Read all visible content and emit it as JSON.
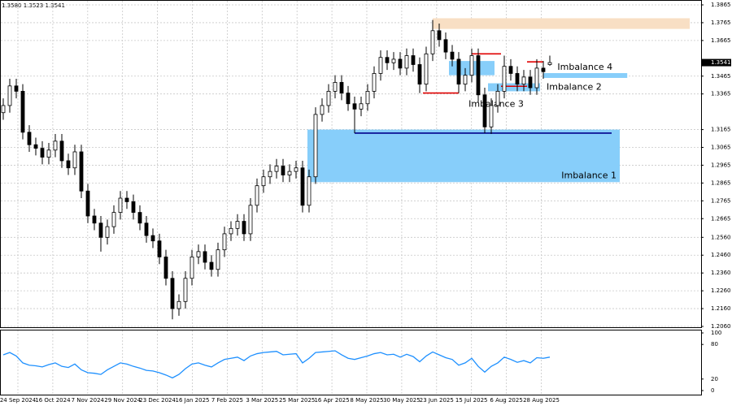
{
  "chart_data": {
    "type": "candlestick",
    "last_bar": {
      "values": [
        1.358,
        1.3523,
        1.3541
      ],
      "value_labels": [
        "1.3580",
        "1.3523",
        "1.3541"
      ]
    },
    "open": [
      1.326,
      1.33,
      1.341,
      1.338,
      1.315,
      1.308,
      1.306,
      1.301,
      1.305,
      1.31,
      1.299,
      1.295,
      1.304,
      1.282,
      1.268,
      1.264,
      1.256,
      1.262,
      1.27,
      1.278,
      1.276,
      1.27,
      1.264,
      1.257,
      1.254,
      1.245,
      1.233,
      1.216,
      1.22,
      1.233,
      1.245,
      1.248,
      1.242,
      1.238,
      1.249,
      1.258,
      1.261,
      1.265,
      1.258,
      1.274,
      1.285,
      1.29,
      1.293,
      1.296,
      1.291,
      1.293,
      1.295,
      1.274,
      1.29,
      1.325,
      1.33,
      1.338,
      1.343,
      1.337,
      1.331,
      1.328,
      1.331,
      1.338,
      1.348,
      1.357,
      1.354,
      1.356,
      1.351,
      1.358,
      1.353,
      1.342,
      1.359,
      1.372,
      1.367,
      1.36,
      1.356,
      1.342,
      1.347,
      1.358,
      1.336,
      1.318,
      1.33,
      1.338,
      1.352,
      1.348,
      1.342,
      1.346,
      1.34,
      1.351,
      1.353
    ],
    "high": [
      1.334,
      1.345,
      1.345,
      1.342,
      1.319,
      1.312,
      1.31,
      1.309,
      1.314,
      1.314,
      1.303,
      1.308,
      1.308,
      1.286,
      1.272,
      1.268,
      1.266,
      1.274,
      1.282,
      1.282,
      1.28,
      1.274,
      1.268,
      1.261,
      1.258,
      1.249,
      1.237,
      1.224,
      1.237,
      1.249,
      1.252,
      1.252,
      1.246,
      1.253,
      1.262,
      1.265,
      1.269,
      1.269,
      1.278,
      1.289,
      1.294,
      1.297,
      1.3,
      1.3,
      1.297,
      1.299,
      1.299,
      1.294,
      1.329,
      1.334,
      1.342,
      1.347,
      1.347,
      1.341,
      1.335,
      1.335,
      1.342,
      1.352,
      1.361,
      1.361,
      1.36,
      1.36,
      1.362,
      1.362,
      1.357,
      1.363,
      1.378,
      1.376,
      1.371,
      1.364,
      1.36,
      1.351,
      1.362,
      1.362,
      1.34,
      1.334,
      1.342,
      1.358,
      1.356,
      1.352,
      1.35,
      1.35,
      1.356,
      1.355,
      1.358
    ],
    "low": [
      1.322,
      1.326,
      1.334,
      1.311,
      1.304,
      1.302,
      1.297,
      1.297,
      1.301,
      1.295,
      1.291,
      1.291,
      1.278,
      1.264,
      1.26,
      1.248,
      1.252,
      1.258,
      1.266,
      1.272,
      1.266,
      1.26,
      1.253,
      1.25,
      1.241,
      1.229,
      1.21,
      1.212,
      1.216,
      1.229,
      1.241,
      1.238,
      1.234,
      1.234,
      1.245,
      1.254,
      1.257,
      1.254,
      1.254,
      1.27,
      1.281,
      1.286,
      1.289,
      1.287,
      1.287,
      1.289,
      1.27,
      1.27,
      1.286,
      1.321,
      1.326,
      1.334,
      1.333,
      1.327,
      1.3145,
      1.324,
      1.327,
      1.334,
      1.344,
      1.35,
      1.35,
      1.347,
      1.347,
      1.349,
      1.337,
      1.338,
      1.355,
      1.363,
      1.356,
      1.352,
      1.337,
      1.338,
      1.343,
      1.332,
      1.3145,
      1.314,
      1.326,
      1.334,
      1.344,
      1.338,
      1.338,
      1.336,
      1.336,
      1.345,
      1.3523
    ],
    "close": [
      1.33,
      1.341,
      1.338,
      1.315,
      1.308,
      1.306,
      1.301,
      1.305,
      1.31,
      1.299,
      1.295,
      1.304,
      1.282,
      1.268,
      1.264,
      1.256,
      1.262,
      1.27,
      1.278,
      1.276,
      1.27,
      1.264,
      1.257,
      1.254,
      1.245,
      1.233,
      1.216,
      1.22,
      1.233,
      1.245,
      1.248,
      1.242,
      1.238,
      1.249,
      1.258,
      1.261,
      1.265,
      1.258,
      1.274,
      1.285,
      1.29,
      1.293,
      1.296,
      1.291,
      1.293,
      1.295,
      1.274,
      1.29,
      1.325,
      1.33,
      1.338,
      1.343,
      1.337,
      1.331,
      1.328,
      1.331,
      1.338,
      1.348,
      1.357,
      1.354,
      1.356,
      1.351,
      1.358,
      1.353,
      1.342,
      1.359,
      1.372,
      1.367,
      1.36,
      1.356,
      1.342,
      1.347,
      1.358,
      1.336,
      1.318,
      1.33,
      1.338,
      1.352,
      1.348,
      1.342,
      1.346,
      1.34,
      1.351,
      1.349,
      1.3541
    ],
    "color": "#000000",
    "ylim": [
      1.206,
      1.3865
    ],
    "yticks": [
      1.3865,
      1.3765,
      1.3665,
      1.3465,
      1.3365,
      1.3165,
      1.3065,
      1.2965,
      1.2865,
      1.2765,
      1.2665,
      {
        "value": 1.256,
        "label": "1.2560"
      },
      {
        "value": 1.246,
        "label": "1.2460"
      },
      {
        "value": 1.236,
        "label": "1.2360"
      },
      {
        "value": 1.226,
        "label": "1.2260"
      },
      {
        "value": 1.216,
        "label": "1.2160"
      },
      {
        "value": 1.206,
        "label": "1.2060"
      }
    ],
    "xtick_labels": [
      "24 Sep 2024",
      "16 Oct 2024",
      "7 Nov 2024",
      "29 Nov 2024",
      "23 Dec 2024",
      "16 Jan 2025",
      "7 Feb 2025",
      "3 Mar 2025",
      "25 Mar 2025",
      "16 Apr 2025",
      "8 May 2025",
      "30 May 2025",
      "23 Jun 2025",
      "15 Jul 2025",
      "6 Aug 2025",
      "28 Aug 2025"
    ],
    "grid": true,
    "zones": [
      {
        "x": [
          66,
          105.5
        ],
        "y": [
          1.373,
          1.379
        ],
        "color": "#f8dfc4"
      },
      {
        "label": "Imbalance 1",
        "x": [
          46.75,
          94.75
        ],
        "y": [
          1.287,
          1.3165
        ],
        "color": "#87cefa"
      },
      {
        "label": "Imbalance 2",
        "x": [
          74.5,
          82.5
        ],
        "y": [
          1.338,
          1.3425
        ],
        "color": "#87cefa"
      },
      {
        "label": "Imbalance 3",
        "x": [
          68.5,
          75.5
        ],
        "y": [
          1.347,
          1.355
        ],
        "color": "#87cefa"
      },
      {
        "label": "Imbalance 4",
        "x": [
          83,
          95.9
        ],
        "y": [
          1.3455,
          1.3482
        ],
        "color": "#87cefa"
      }
    ],
    "levels": [
      {
        "y": 1.359,
        "x": [
          72,
          76.5
        ],
        "color": "#e00000"
      },
      {
        "y": 1.337,
        "x": [
          64.5,
          70
        ],
        "color": "#e00000"
      },
      {
        "y": 1.3545,
        "x": [
          80.5,
          83
        ],
        "color": "#e00000"
      },
      {
        "y": 1.3408,
        "x": [
          76.5,
          80.5
        ],
        "color": "#e00000"
      },
      {
        "y": 1.3145,
        "x": [
          54,
          93.5
        ],
        "color": "#00008b"
      }
    ],
    "rsi": {
      "values": [
        62,
        66,
        60,
        48,
        44,
        43,
        41,
        45,
        48,
        42,
        40,
        46,
        36,
        31,
        30,
        28,
        36,
        42,
        48,
        46,
        42,
        39,
        35,
        34,
        31,
        27,
        22,
        28,
        38,
        46,
        48,
        44,
        41,
        48,
        54,
        56,
        58,
        52,
        60,
        64,
        66,
        67,
        68,
        62,
        63,
        64,
        48,
        56,
        66,
        67,
        68,
        69,
        62,
        56,
        54,
        57,
        60,
        64,
        66,
        62,
        63,
        58,
        63,
        59,
        50,
        60,
        67,
        62,
        57,
        54,
        44,
        48,
        56,
        42,
        32,
        42,
        48,
        58,
        54,
        49,
        52,
        48,
        57,
        56,
        58
      ],
      "color": "#1e90ff",
      "ylim": [
        0,
        100
      ],
      "yticks": [
        100,
        80,
        20,
        0
      ]
    }
  }
}
